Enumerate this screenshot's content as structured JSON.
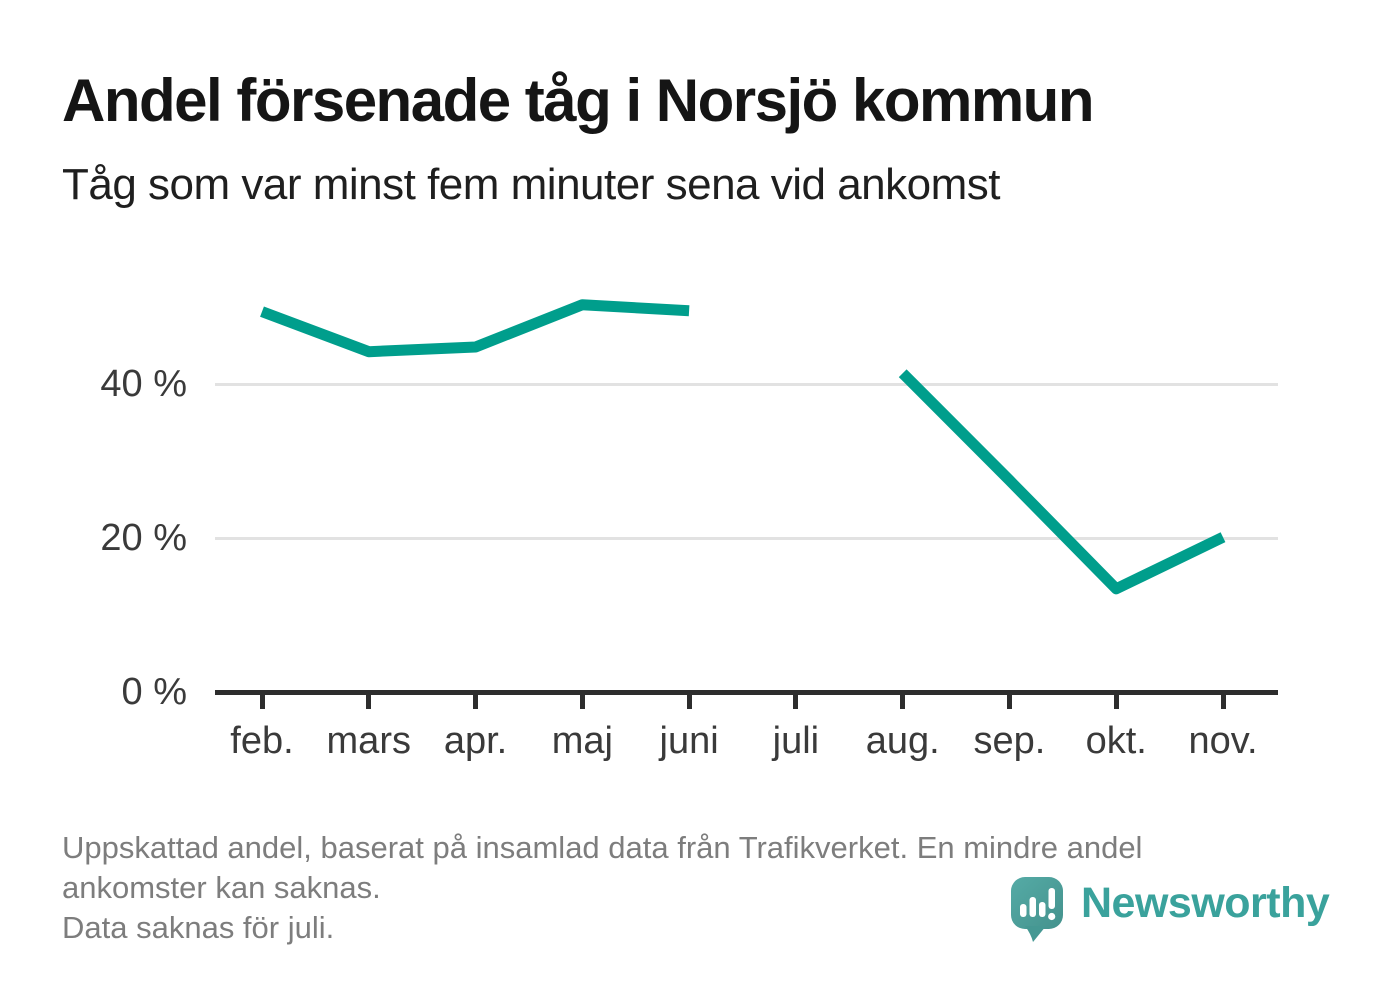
{
  "chart_data": {
    "type": "line",
    "title": "Andel försenade tåg i Norsjö kommun",
    "subtitle": "Tåg som var minst fem minuter sena vid ankomst",
    "categories": [
      "feb.",
      "mars",
      "apr.",
      "maj",
      "juni",
      "juli",
      "aug.",
      "sep.",
      "okt.",
      "nov."
    ],
    "series": [
      {
        "name": "Andel försenade tåg",
        "values": [
          49.4,
          44.2,
          44.8,
          50.3,
          49.5,
          null,
          41.4,
          27.5,
          13.4,
          20.1
        ]
      }
    ],
    "unit": "%",
    "missing_data_note": "Data saknas för juli.",
    "y_axis": {
      "ticks": [
        {
          "value": 0,
          "label": "0 %"
        },
        {
          "value": 20,
          "label": "20 %"
        },
        {
          "value": 40,
          "label": "40 %"
        }
      ],
      "range": [
        0,
        56
      ]
    },
    "grid": "horizontal",
    "legend": "none",
    "line_color": "#009e8c"
  },
  "footnote": {
    "lines": [
      "Uppskattad andel, baserat på insamlad data från Trafikverket. En mindre andel",
      "ankomster kan saknas.",
      "Data saknas för juli."
    ]
  },
  "logo": {
    "wordmark": "Newsworthy",
    "icon": "bar-chart-speech-bubble",
    "color": "#3aa29c",
    "bubble_color": "#4da6a1"
  }
}
